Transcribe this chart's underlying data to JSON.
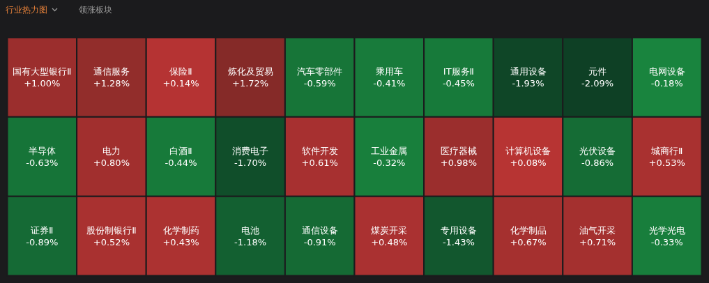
{
  "chart_data": {
    "type": "other",
    "title": "行业热力图",
    "annotations": [
      "领涨板块"
    ],
    "categories": [
      "国有大型银行Ⅱ",
      "半导体",
      "证券Ⅱ",
      "通信服务",
      "电力",
      "股份制银行Ⅱ",
      "保险Ⅱ",
      "白酒Ⅱ",
      "化学制药",
      "炼化及贸易",
      "消费电子",
      "电池",
      "汽车零部件",
      "软件开发",
      "通信设备",
      "乘用车",
      "工业金属",
      "煤炭开采",
      "IT服务Ⅱ",
      "医疗器械",
      "专用设备",
      "通用设备",
      "元件",
      "电网设备",
      "计算机设备",
      "化学制品",
      "光伏设备",
      "城商行Ⅱ",
      "油气开采",
      "光学光电"
    ],
    "values": [
      1.0,
      -0.63,
      -0.89,
      1.28,
      0.8,
      0.52,
      0.14,
      -0.44,
      0.43,
      1.72,
      -1.7,
      -1.18,
      -0.59,
      0.61,
      -0.91,
      -0.41,
      -0.32,
      0.48,
      -0.45,
      0.98,
      -1.43,
      -1.93,
      -2.09,
      -0.18,
      0.08,
      0.67,
      -0.86,
      0.53,
      0.71,
      -0.33
    ],
    "value_labels": [
      "+1.00%",
      "-0.63%",
      "-0.89%",
      "+1.28%",
      "+0.80%",
      "+0.52%",
      "+0.14%",
      "-0.44%",
      "+0.43%",
      "+1.72%",
      "-1.70%",
      "-1.18%",
      "-0.59%",
      "+0.61%",
      "-0.91%",
      "-0.41%",
      "-0.32%",
      "+0.48%",
      "-0.45%",
      "+0.98%",
      "-1.43%",
      "-1.93%",
      "-2.09%",
      "-0.18%",
      "+0.08%",
      "+0.67%",
      "-0.86%",
      "+0.53%",
      "+0.71%",
      "-0.33%"
    ]
  }
}
